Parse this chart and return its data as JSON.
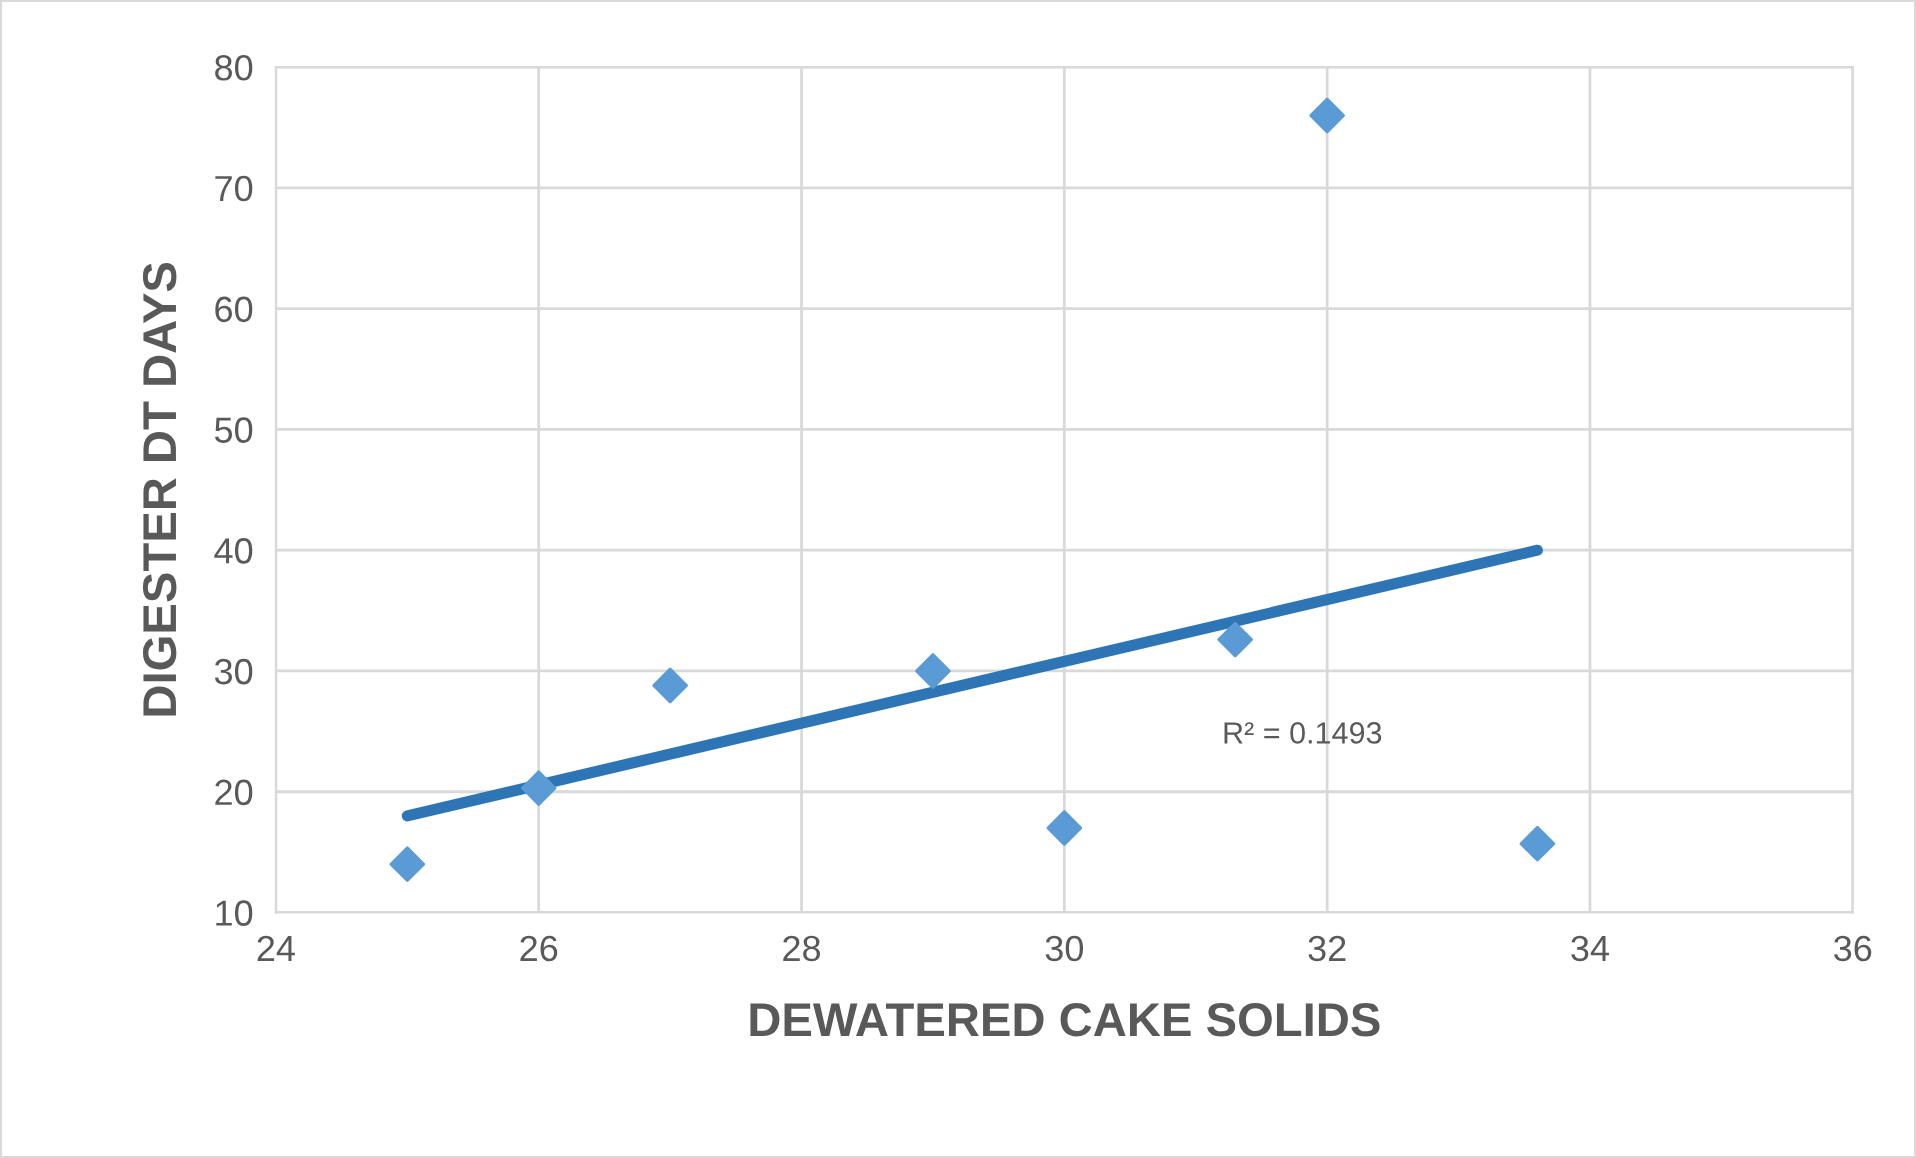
{
  "chart_data": {
    "type": "scatter",
    "xlabel": "DEWATERED CAKE SOLIDS",
    "ylabel": "DIGESTER DT DAYS",
    "series": [
      {
        "color": "#5b9bd5",
        "marker": "diamond",
        "x": [
          25,
          26,
          27,
          29,
          30,
          31.3,
          32,
          33.6
        ],
        "values": [
          14,
          20.3,
          28.8,
          30,
          17,
          32.6,
          76,
          15.7
        ]
      },
      {
        "type": "line",
        "color": "#2e75b6",
        "marker": "none",
        "x": [
          25,
          33.6
        ],
        "values": [
          18,
          40
        ]
      }
    ],
    "annotations": [
      "R² = 0.1493"
    ],
    "xlim": [
      24,
      36
    ],
    "xticks": [
      24,
      26,
      28,
      30,
      32,
      34,
      36
    ],
    "ylim": [
      10,
      80
    ],
    "yticks": [
      10,
      20,
      30,
      40,
      50,
      60,
      70,
      80
    ],
    "grid": true
  }
}
